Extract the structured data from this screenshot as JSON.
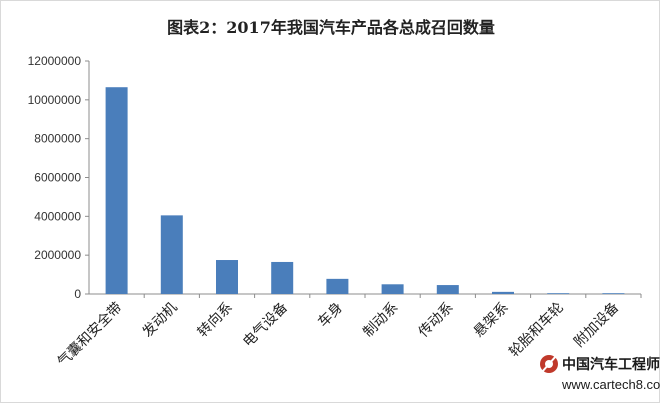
{
  "chart_data": {
    "type": "bar",
    "title": "图表2：2017年我国汽车产品各总成召回数量",
    "xlabel": "",
    "ylabel": "",
    "categories": [
      "气囊和安全带",
      "发动机",
      "转向系",
      "电气设备",
      "车身",
      "制动系",
      "传动系",
      "悬架系",
      "轮胎和车轮",
      "附加设备"
    ],
    "values": [
      10650000,
      4050000,
      1750000,
      1650000,
      780000,
      500000,
      460000,
      110000,
      15000,
      8000
    ],
    "ylim": [
      0,
      12000000
    ],
    "yticks": [
      0,
      2000000,
      4000000,
      6000000,
      8000000,
      10000000,
      12000000
    ],
    "ytick_labels": [
      "0",
      "2000000",
      "4000000",
      "6000000",
      "8000000",
      "10000000",
      "12000000"
    ],
    "grid": false,
    "legend": "none",
    "bar_color": "#4a7ebb"
  },
  "watermark": {
    "text": "中国汽车工程师之家",
    "url": "www.cartech8.com"
  }
}
